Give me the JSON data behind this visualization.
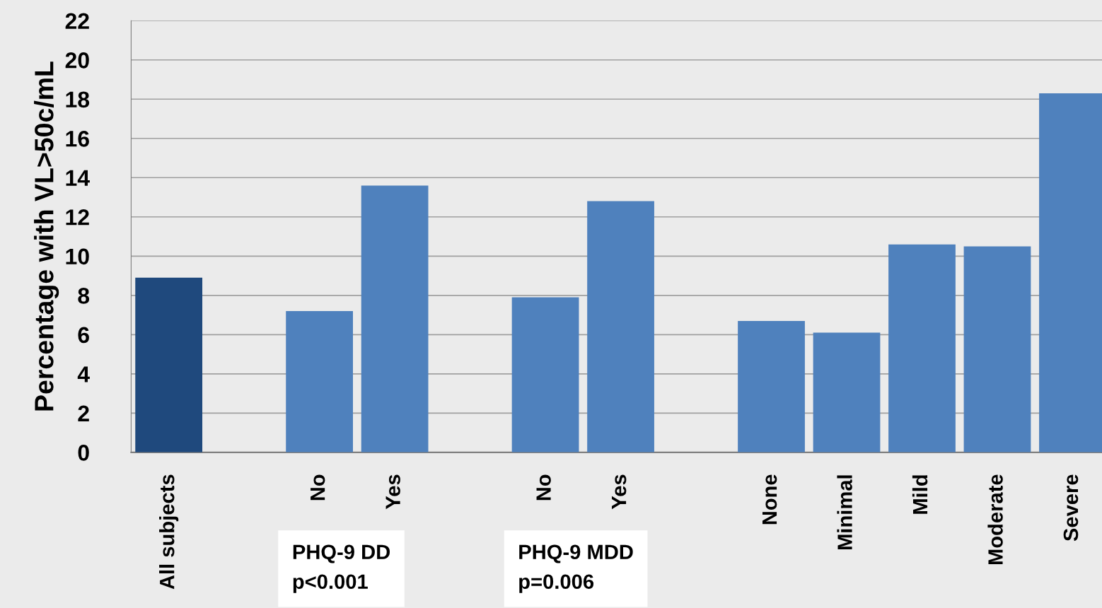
{
  "chart_data": {
    "type": "bar",
    "ylabel": "Percentage with VL>50c/mL",
    "categories": [
      "All subjects",
      null,
      "No",
      "Yes",
      null,
      "No",
      "Yes",
      null,
      "None",
      "Minimal",
      "Mild",
      "Moderate",
      "Severe"
    ],
    "values": [
      8.9,
      null,
      7.2,
      13.6,
      null,
      7.9,
      12.8,
      null,
      6.7,
      6.1,
      10.6,
      10.5,
      18.3
    ],
    "colors": [
      "#1f497d",
      "#4f81bd",
      "#4f81bd",
      "#4f81bd",
      "#4f81bd",
      "#4f81bd",
      "#4f81bd",
      "#4f81bd",
      "#4f81bd",
      "#4f81bd",
      "#4f81bd",
      "#4f81bd",
      "#4f81bd"
    ],
    "ylim": [
      0,
      22
    ],
    "yticks": [
      0,
      2,
      4,
      6,
      8,
      10,
      12,
      14,
      16,
      18,
      20,
      22
    ],
    "grid": "y",
    "annotations": [
      "PHQ-9 DD\np<0.001",
      "PHQ-9 MDD\np=0.006"
    ]
  }
}
